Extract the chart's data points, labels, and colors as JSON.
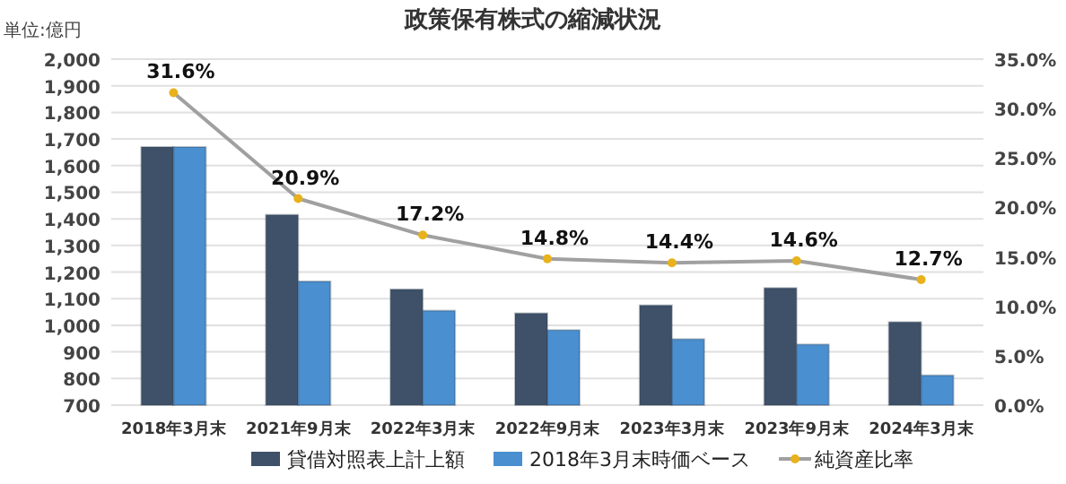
{
  "chart_data": {
    "type": "bar",
    "title": "政策保有株式の縮減状況",
    "annotations": [
      "単位:億円"
    ],
    "categories": [
      "2018年3月末",
      "2021年9月末",
      "2022年3月末",
      "2022年9月末",
      "2023年3月末",
      "2023年9月末",
      "2024年3月末"
    ],
    "series": [
      {
        "name": "貸借対照表上計上額",
        "color": "#3f5168",
        "values": [
          1670,
          1415,
          1135,
          1045,
          1075,
          1140,
          1012
        ]
      },
      {
        "name": "2018年3月末時価ベース",
        "color": "#4a8fcf",
        "values": [
          1670,
          1165,
          1055,
          982,
          948,
          928,
          812
        ]
      },
      {
        "name": "純資産比率",
        "type": "line",
        "axis": "y2",
        "color": "#a0a0a0",
        "marker": "circle",
        "values": [
          31.6,
          20.9,
          17.2,
          14.8,
          14.4,
          14.6,
          12.7
        ],
        "value_labels": [
          "31.6%",
          "20.9%",
          "17.2%",
          "14.8%",
          "14.4%",
          "14.6%",
          "12.7%"
        ]
      }
    ],
    "ylim": [
      700,
      2000
    ],
    "yticks": [
      {
        "value": 700,
        "label": "700"
      },
      {
        "value": 800,
        "label": "800"
      },
      {
        "value": 900,
        "label": "900"
      },
      {
        "value": 1000,
        "label": "1,000"
      },
      {
        "value": 1100,
        "label": "1,100"
      },
      {
        "value": 1200,
        "label": "1,200"
      },
      {
        "value": 1300,
        "label": "1,300"
      },
      {
        "value": 1400,
        "label": "1,400"
      },
      {
        "value": 1500,
        "label": "1,500"
      },
      {
        "value": 1600,
        "label": "1,600"
      },
      {
        "value": 1700,
        "label": "1,700"
      },
      {
        "value": 1800,
        "label": "1,800"
      },
      {
        "value": 1900,
        "label": "1,900"
      },
      {
        "value": 2000,
        "label": "2,000"
      }
    ],
    "y2lim": [
      0,
      35
    ],
    "y2ticks": [
      {
        "value": 0,
        "label": "0.0%"
      },
      {
        "value": 5,
        "label": "5.0%"
      },
      {
        "value": 10,
        "label": "10.0%"
      },
      {
        "value": 15,
        "label": "15.0%"
      },
      {
        "value": 20,
        "label": "20.0%"
      },
      {
        "value": 25,
        "label": "25.0%"
      },
      {
        "value": 30,
        "label": "30.0%"
      },
      {
        "value": 35,
        "label": "35.0%"
      }
    ],
    "grid": "y",
    "legend": "bottom"
  }
}
